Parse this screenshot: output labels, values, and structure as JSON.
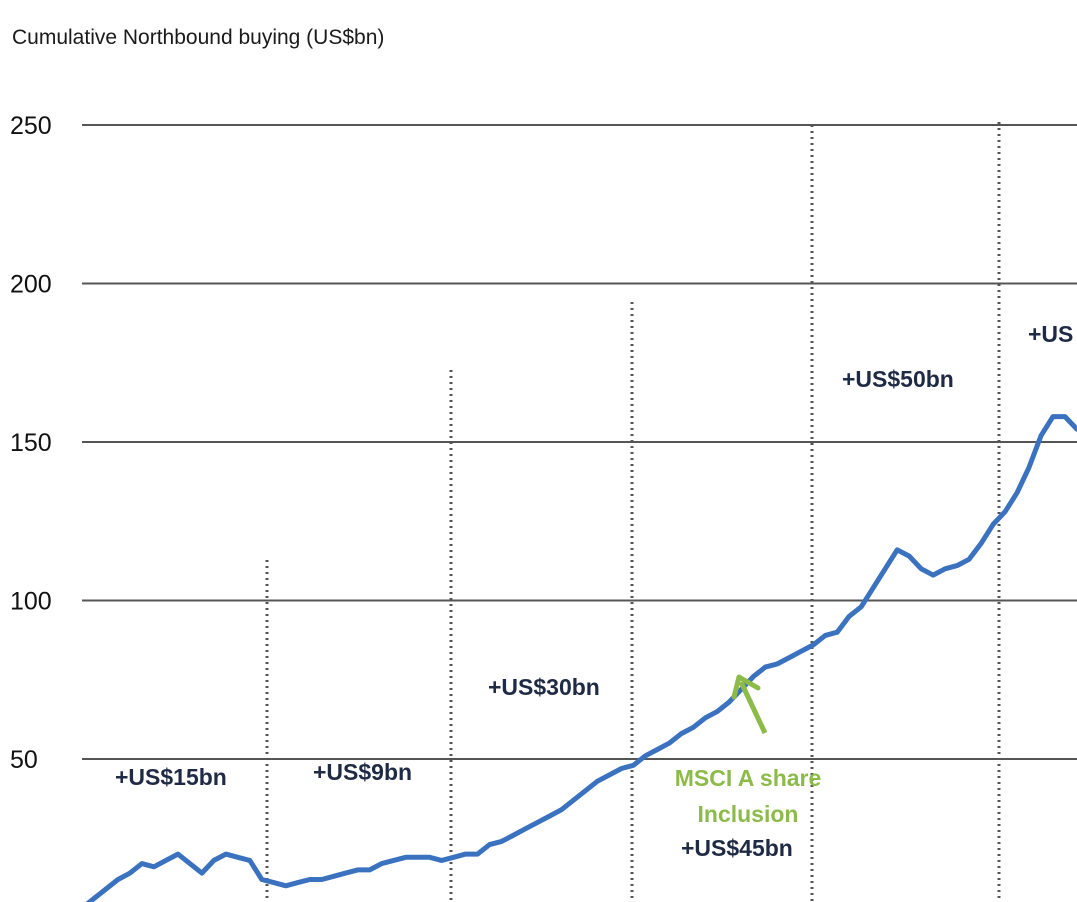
{
  "chart_data": {
    "type": "line",
    "title": "Cumulative Northbound buying (US$bn)",
    "xlabel": "",
    "ylabel": "",
    "ylim": [
      0,
      250
    ],
    "yticks": [
      50,
      100,
      150,
      200,
      250
    ],
    "grid": true,
    "legend": "none",
    "series": [
      {
        "color": "#3a72c0",
        "x": [
          0,
          1,
          2,
          3,
          4,
          5,
          6,
          7,
          8,
          9,
          10,
          11,
          12,
          13,
          14,
          15,
          16,
          17,
          18,
          19,
          20,
          21,
          22,
          23,
          24,
          25,
          26,
          27,
          28,
          29,
          30,
          31,
          32,
          33,
          34,
          35,
          36,
          37,
          38,
          39,
          40,
          41,
          42,
          43,
          44,
          45,
          46,
          47,
          48,
          49,
          50,
          51,
          52,
          53,
          54,
          55,
          56,
          57,
          58,
          59,
          60,
          61,
          62,
          63,
          64,
          65,
          66,
          67,
          68,
          69,
          70,
          71,
          72,
          73,
          74,
          75,
          76,
          77,
          78,
          79,
          80,
          81,
          82,
          83
        ],
        "values": [
          3,
          6,
          9,
          12,
          14,
          17,
          16,
          18,
          20,
          17,
          14,
          18,
          20,
          19,
          18,
          12,
          11,
          10,
          11,
          12,
          12,
          13,
          14,
          15,
          15,
          17,
          18,
          19,
          19,
          19,
          18,
          19,
          20,
          20,
          23,
          24,
          26,
          28,
          30,
          32,
          34,
          37,
          40,
          43,
          45,
          47,
          48,
          51,
          53,
          55,
          58,
          60,
          63,
          65,
          68,
          72,
          76,
          79,
          80,
          82,
          84,
          86,
          89,
          90,
          95,
          98,
          104,
          110,
          116,
          114,
          110,
          108,
          110,
          111,
          113,
          118,
          124,
          128,
          134,
          142,
          152,
          158,
          158,
          154
        ]
      }
    ],
    "annotations": [
      {
        "text": "+US$15bn",
        "color": "#1f2a44"
      },
      {
        "text": "+US$9bn",
        "color": "#1f2a44"
      },
      {
        "text": "+US$30bn",
        "color": "#1f2a44"
      },
      {
        "text": "+US$45bn",
        "color": "#1f2a44"
      },
      {
        "text": "+US$50bn",
        "color": "#1f2a44"
      },
      {
        "text": "+US",
        "color": "#1f2a44"
      }
    ],
    "callout": {
      "line1": "MSCI A share",
      "line2": "Inclusion",
      "color": "#8dbb4a"
    }
  }
}
